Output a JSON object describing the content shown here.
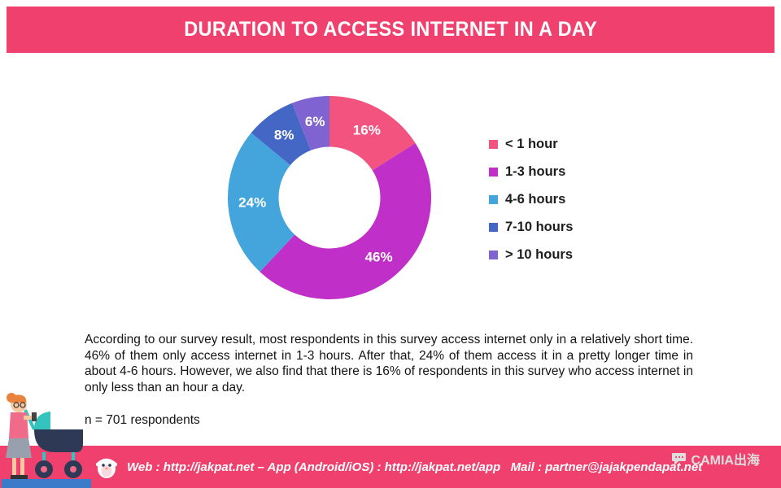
{
  "theme": {
    "accent_pink": "#F0416E"
  },
  "header": {
    "title": "DURATION TO ACCESS INTERNET IN A DAY"
  },
  "chart_data": {
    "type": "pie",
    "subtype": "donut",
    "title": "DURATION TO ACCESS INTERNET IN A DAY",
    "labels": [
      "< 1 hour",
      "1-3 hours",
      "4-6 hours",
      "7-10 hours",
      "> 10 hours"
    ],
    "values": [
      16,
      46,
      24,
      8,
      6
    ],
    "unit": "percent",
    "data_labels": [
      "16%",
      "46%",
      "24%",
      "8%",
      "6%"
    ],
    "colors": [
      "#F2537F",
      "#C02FC7",
      "#44A4DC",
      "#4467C5",
      "#7F64D1"
    ],
    "inner_radius_ratio": 0.5,
    "start_angle_deg": 0,
    "direction": "clockwise",
    "legend_position": "right"
  },
  "body": {
    "paragraph": "According to our survey result, most respondents in this survey access internet only in a relatively short time. 46% of them only access internet in 1-3 hours. After that, 24% of them access it in a pretty longer time in about 4-6 hours. However, we also find that there is 16% of respondents in this survey who access internet in only less than an hour a day.",
    "sample_size": "n = 701 respondents"
  },
  "footer": {
    "contact_text": "Web : http://jakpat.net – App (Android/iOS) : http://jakpat.net/app   Mail : partner@jajakpendapat.net",
    "watermark": "CAMIA出海"
  }
}
